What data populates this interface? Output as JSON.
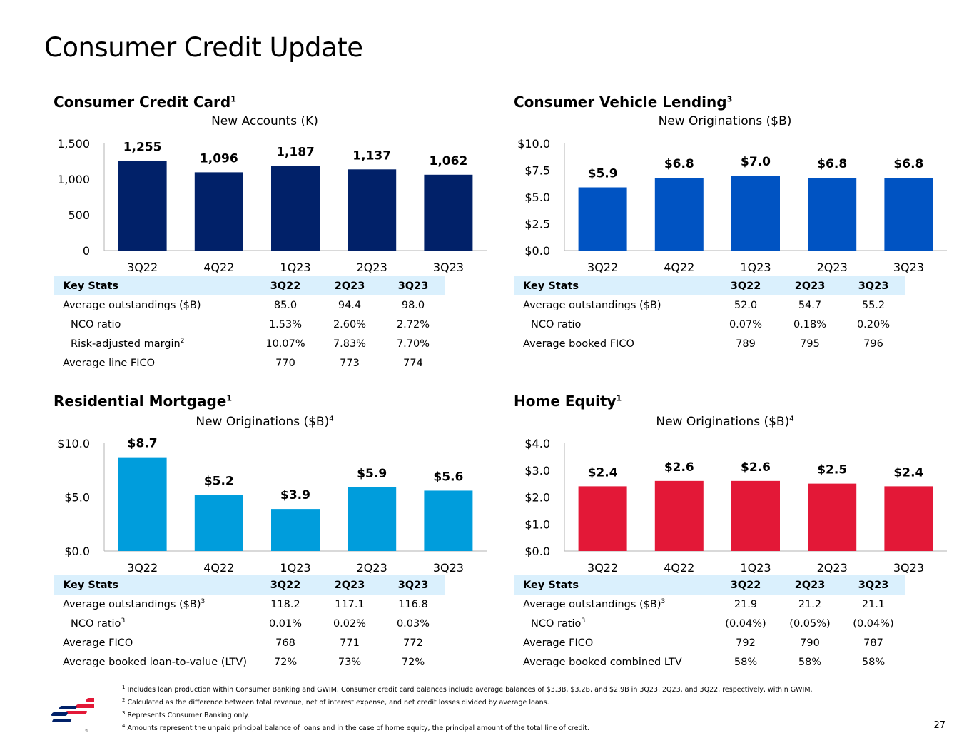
{
  "page": {
    "title": "Consumer Credit Update",
    "page_number": "27"
  },
  "panels": {
    "credit_card": {
      "title": "Consumer Credit Card",
      "title_sup": "1",
      "subtitle": "New Accounts (K)",
      "subtitle_sup": "",
      "stats_header": [
        "Key Stats",
        "3Q22",
        "2Q23",
        "3Q23"
      ],
      "stats_rows": [
        {
          "label": "Average outstandings ($B)",
          "sup": "",
          "indent": false,
          "values": [
            "85.0",
            "94.4",
            "98.0"
          ]
        },
        {
          "label": "NCO ratio",
          "sup": "",
          "indent": true,
          "values": [
            "1.53%",
            "2.60%",
            "2.72%"
          ]
        },
        {
          "label": "Risk-adjusted margin",
          "sup": "2",
          "indent": true,
          "values": [
            "10.07%",
            "7.83%",
            "7.70%"
          ]
        },
        {
          "label": "Average line FICO",
          "sup": "",
          "indent": false,
          "values": [
            "770",
            "773",
            "774"
          ]
        }
      ]
    },
    "vehicle": {
      "title": "Consumer Vehicle Lending",
      "title_sup": "3",
      "subtitle": "New Originations ($B)",
      "subtitle_sup": "",
      "stats_header": [
        "Key Stats",
        "3Q22",
        "2Q23",
        "3Q23"
      ],
      "stats_rows": [
        {
          "label": "Average outstandings ($B)",
          "sup": "",
          "indent": false,
          "values": [
            "52.0",
            "54.7",
            "55.2"
          ]
        },
        {
          "label": "NCO ratio",
          "sup": "",
          "indent": true,
          "values": [
            "0.07%",
            "0.18%",
            "0.20%"
          ]
        },
        {
          "label": "Average booked FICO",
          "sup": "",
          "indent": false,
          "values": [
            "789",
            "795",
            "796"
          ]
        }
      ]
    },
    "mortgage": {
      "title": "Residential Mortgage",
      "title_sup": "1",
      "subtitle": "New Originations ($B)",
      "subtitle_sup": "4",
      "stats_header": [
        "Key Stats",
        "3Q22",
        "2Q23",
        "3Q23"
      ],
      "stats_rows": [
        {
          "label": "Average outstandings ($B)",
          "sup": "3",
          "indent": false,
          "values": [
            "118.2",
            "117.1",
            "116.8"
          ]
        },
        {
          "label": "NCO ratio",
          "sup": "3",
          "indent": true,
          "values": [
            "0.01%",
            "0.02%",
            "0.03%"
          ]
        },
        {
          "label": "Average FICO",
          "sup": "",
          "indent": false,
          "values": [
            "768",
            "771",
            "772"
          ]
        },
        {
          "label": "Average booked loan-to-value (LTV)",
          "sup": "",
          "indent": false,
          "values": [
            "72%",
            "73%",
            "72%"
          ]
        }
      ]
    },
    "home_equity": {
      "title": "Home Equity",
      "title_sup": "1",
      "subtitle": "New Originations ($B)",
      "subtitle_sup": "4",
      "stats_header": [
        "Key Stats",
        "3Q22",
        "2Q23",
        "3Q23"
      ],
      "stats_rows": [
        {
          "label": "Average outstandings ($B)",
          "sup": "3",
          "indent": false,
          "values": [
            "21.9",
            "21.2",
            "21.1"
          ]
        },
        {
          "label": "NCO ratio",
          "sup": "3",
          "indent": true,
          "values": [
            "(0.04%)",
            "(0.05%)",
            "(0.04%)"
          ]
        },
        {
          "label": "Average FICO",
          "sup": "",
          "indent": false,
          "values": [
            "792",
            "790",
            "787"
          ]
        },
        {
          "label": "Average booked combined LTV",
          "sup": "",
          "indent": false,
          "values": [
            "58%",
            "58%",
            "58%"
          ]
        }
      ]
    }
  },
  "footnotes": [
    {
      "sup": "1",
      "text": "Includes loan production within Consumer Banking and GWIM. Consumer credit card balances include average balances of $3.3B, $3.2B, and $2.9B in 3Q23, 2Q23, and 3Q22, respectively, within GWIM."
    },
    {
      "sup": "2",
      "text": "Calculated as the difference between total revenue, net of interest expense, and net credit losses divided by average loans."
    },
    {
      "sup": "3",
      "text": "Represents Consumer Banking only."
    },
    {
      "sup": "4",
      "text": "Amounts represent the unpaid principal balance of loans and in the case of home equity, the principal amount of the total line of credit."
    }
  ],
  "chart_data": [
    {
      "id": "credit_card",
      "type": "bar",
      "title": "Consumer Credit Card",
      "ylabel": "New Accounts (K)",
      "categories": [
        "3Q22",
        "4Q22",
        "1Q23",
        "2Q23",
        "3Q23"
      ],
      "values": [
        1255,
        1096,
        1187,
        1137,
        1062
      ],
      "value_labels": [
        "1,255",
        "1,096",
        "1,187",
        "1,137",
        "1,062"
      ],
      "ylim": [
        0,
        1500
      ],
      "yticks": [
        0,
        500,
        1000,
        1500
      ],
      "ytick_labels": [
        "0",
        "500",
        "1,000",
        "1,500"
      ],
      "color": "#012169"
    },
    {
      "id": "vehicle",
      "type": "bar",
      "title": "Consumer Vehicle Lending",
      "ylabel": "New Originations ($B)",
      "categories": [
        "3Q22",
        "4Q22",
        "1Q23",
        "2Q23",
        "3Q23"
      ],
      "values": [
        5.9,
        6.8,
        7.0,
        6.8,
        6.8
      ],
      "value_labels": [
        "$5.9",
        "$6.8",
        "$7.0",
        "$6.8",
        "$6.8"
      ],
      "ylim": [
        0,
        10
      ],
      "yticks": [
        0,
        2.5,
        5,
        7.5,
        10
      ],
      "ytick_labels": [
        "$0.0",
        "$2.5",
        "$5.0",
        "$7.5",
        "$10.0"
      ],
      "color": "#0053c2"
    },
    {
      "id": "mortgage",
      "type": "bar",
      "title": "Residential Mortgage",
      "ylabel": "New Originations ($B)",
      "categories": [
        "3Q22",
        "4Q22",
        "1Q23",
        "2Q23",
        "3Q23"
      ],
      "values": [
        8.7,
        5.2,
        3.9,
        5.9,
        5.6
      ],
      "value_labels": [
        "$8.7",
        "$5.2",
        "$3.9",
        "$5.9",
        "$5.6"
      ],
      "ylim": [
        0,
        10
      ],
      "yticks": [
        0,
        5,
        10
      ],
      "ytick_labels": [
        "$0.0",
        "$5.0",
        "$10.0"
      ],
      "color": "#009ddc"
    },
    {
      "id": "home_equity",
      "type": "bar",
      "title": "Home Equity",
      "ylabel": "New Originations ($B)",
      "categories": [
        "3Q22",
        "4Q22",
        "1Q23",
        "2Q23",
        "3Q23"
      ],
      "values": [
        2.4,
        2.6,
        2.6,
        2.5,
        2.4
      ],
      "value_labels": [
        "$2.4",
        "$2.6",
        "$2.6",
        "$2.5",
        "$2.4"
      ],
      "ylim": [
        0,
        4
      ],
      "yticks": [
        0,
        1,
        2,
        3,
        4
      ],
      "ytick_labels": [
        "$0.0",
        "$1.0",
        "$2.0",
        "$3.0",
        "$4.0"
      ],
      "color": "#e31837"
    }
  ]
}
